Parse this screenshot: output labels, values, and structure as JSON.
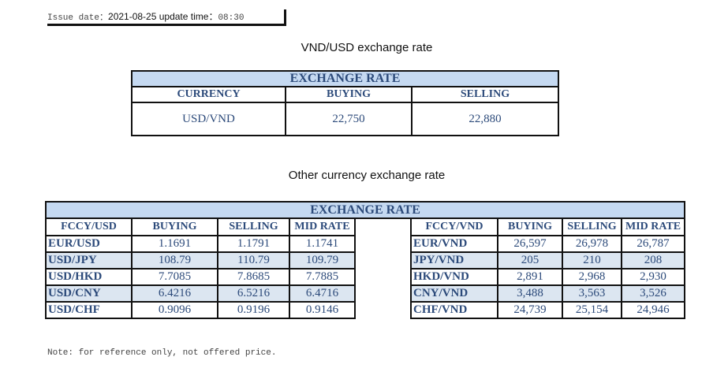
{
  "issue": {
    "label": "Issue date：",
    "date": "2021-08-25",
    "update_label": " update time：",
    "time": "08:30"
  },
  "vnd_usd": {
    "heading": "VND/USD exchange rate",
    "title": "EXCHANGE RATE",
    "headers": [
      "CURRENCY",
      "BUYING",
      "SELLING"
    ],
    "row": [
      "USD/VND",
      "22,750",
      "22,880"
    ]
  },
  "other": {
    "heading": "Other currency exchange rate",
    "title": "EXCHANGE  RATE",
    "left_headers": [
      "FCCY/USD",
      "BUYING",
      "SELLING",
      "MID RATE"
    ],
    "right_headers": [
      "FCCY/VND",
      "BUYING",
      "SELLING",
      "MID RATE"
    ],
    "left_rows": [
      [
        "EUR/USD",
        "1.1691",
        "1.1791",
        "1.1741"
      ],
      [
        "USD/JPY",
        "108.79",
        "110.79",
        "109.79"
      ],
      [
        "USD/HKD",
        "7.7085",
        "7.8685",
        "7.7885"
      ],
      [
        "USD/CNY",
        "6.4216",
        "6.5216",
        "6.4716"
      ],
      [
        "USD/CHF",
        "0.9096",
        "0.9196",
        "0.9146"
      ]
    ],
    "right_rows": [
      [
        "EUR/VND",
        "26,597",
        "26,978",
        "26,787"
      ],
      [
        "JPY/VND",
        "205",
        "210",
        "208"
      ],
      [
        "HKD/VND",
        "2,891",
        "2,968",
        "2,930"
      ],
      [
        "CNY/VND",
        "3,488",
        "3,563",
        "3,526"
      ],
      [
        "CHF/VND",
        "24,739",
        "25,154",
        "24,946"
      ]
    ]
  },
  "note": "Note: for reference only, not offered price.",
  "colors": {
    "header_bg": "#c5d9f1",
    "alt_row": "#dce6f1",
    "text": "#2c4a7a"
  }
}
